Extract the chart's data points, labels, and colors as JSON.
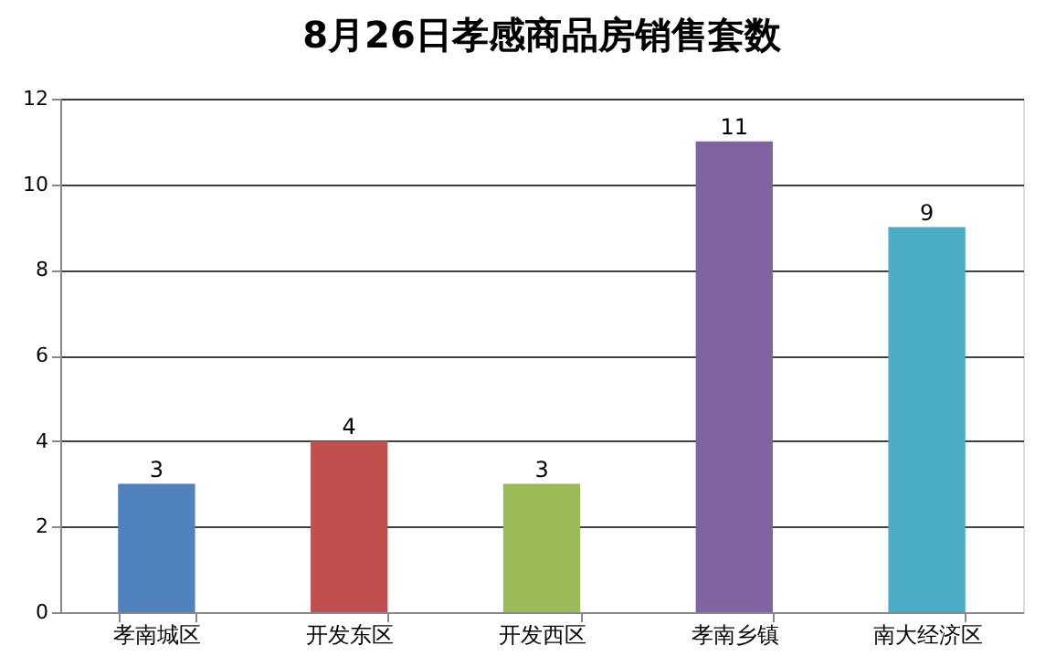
{
  "chart_data": {
    "type": "bar",
    "title": "8月26日孝感商品房销售套数",
    "categories": [
      "孝南城区",
      "开发东区",
      "开发西区",
      "孝南乡镇",
      "南大经济区"
    ],
    "values": [
      3,
      4,
      3,
      11,
      9
    ],
    "colors": [
      "#4f81bd",
      "#c0504d",
      "#9bbb59",
      "#8064a2",
      "#4bacc6"
    ],
    "ylim": [
      0,
      12
    ],
    "yticks": [
      0,
      2,
      4,
      6,
      8,
      10,
      12
    ],
    "grid": "y",
    "data_labels": true
  }
}
